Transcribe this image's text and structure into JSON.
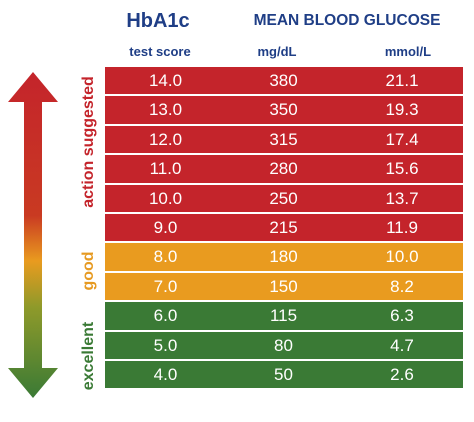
{
  "header": {
    "hba1c_title": "HbA1c",
    "mean_title": "MEAN BLOOD GLUCOSE",
    "col_test": "test score",
    "col_mgdl": "mg/dL",
    "col_mmol": "mmol/L"
  },
  "zones": {
    "action": "action suggested",
    "good": "good",
    "excellent": "excellent"
  },
  "colors": {
    "action": "#c4242b",
    "good": "#e99b1f",
    "excellent": "#3a7a35",
    "header_text": "#1f3e86"
  },
  "chart_data": {
    "type": "table",
    "title": "HbA1c / MEAN BLOOD GLUCOSE",
    "columns": [
      "test score",
      "mg/dL",
      "mmol/L"
    ],
    "rows": [
      {
        "hba1c": "14.0",
        "mgdl": "380",
        "mmol": "21.1",
        "zone": "action"
      },
      {
        "hba1c": "13.0",
        "mgdl": "350",
        "mmol": "19.3",
        "zone": "action"
      },
      {
        "hba1c": "12.0",
        "mgdl": "315",
        "mmol": "17.4",
        "zone": "action"
      },
      {
        "hba1c": "11.0",
        "mgdl": "280",
        "mmol": "15.6",
        "zone": "action"
      },
      {
        "hba1c": "10.0",
        "mgdl": "250",
        "mmol": "13.7",
        "zone": "action"
      },
      {
        "hba1c": "9.0",
        "mgdl": "215",
        "mmol": "11.9",
        "zone": "action"
      },
      {
        "hba1c": "8.0",
        "mgdl": "180",
        "mmol": "10.0",
        "zone": "good"
      },
      {
        "hba1c": "7.0",
        "mgdl": "150",
        "mmol": "8.2",
        "zone": "good"
      },
      {
        "hba1c": "6.0",
        "mgdl": "115",
        "mmol": "6.3",
        "zone": "excellent"
      },
      {
        "hba1c": "5.0",
        "mgdl": "80",
        "mmol": "4.7",
        "zone": "excellent"
      },
      {
        "hba1c": "4.0",
        "mgdl": "50",
        "mmol": "2.6",
        "zone": "excellent"
      }
    ]
  }
}
